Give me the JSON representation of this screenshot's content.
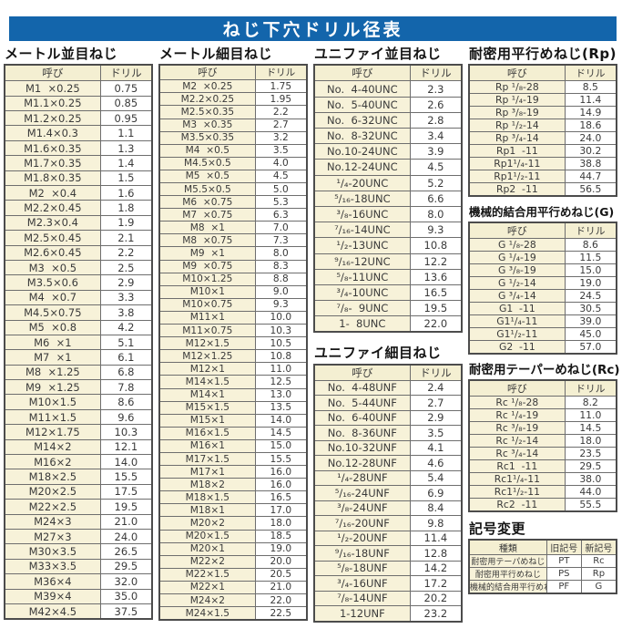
{
  "page_title": "ねじ下穴ドリル径表",
  "colors": {
    "banner_bg": "#1365ab",
    "banner_text": "#ffffff",
    "cell_cream": "#f7f2d9",
    "table_border": "#4c4c4c"
  },
  "tables": {
    "metric_coarse": {
      "title": "メートル並目ねじ",
      "col_headers": [
        "呼び",
        "ドリル"
      ],
      "rows": [
        [
          "M1  ×0.25",
          "0.75"
        ],
        [
          "M1.1×0.25",
          "0.85"
        ],
        [
          "M1.2×0.25",
          "0.95"
        ],
        [
          "M1.4×0.3",
          "1.1"
        ],
        [
          "M1.6×0.35",
          "1.3"
        ],
        [
          "M1.7×0.35",
          "1.4"
        ],
        [
          "M1.8×0.35",
          "1.5"
        ],
        [
          "M2  ×0.4",
          "1.6"
        ],
        [
          "M2.2×0.45",
          "1.8"
        ],
        [
          "M2.3×0.4",
          "1.9"
        ],
        [
          "M2.5×0.45",
          "2.1"
        ],
        [
          "M2.6×0.45",
          "2.2"
        ],
        [
          "M3  ×0.5",
          "2.5"
        ],
        [
          "M3.5×0.6",
          "2.9"
        ],
        [
          "M4  ×0.7",
          "3.3"
        ],
        [
          "M4.5×0.75",
          "3.8"
        ],
        [
          "M5  ×0.8",
          "4.2"
        ],
        [
          "M6  ×1",
          "5.1"
        ],
        [
          "M7  ×1",
          "6.1"
        ],
        [
          "M8  ×1.25",
          "6.8"
        ],
        [
          "M9  ×1.25",
          "7.8"
        ],
        [
          "M10×1.5",
          "8.6"
        ],
        [
          "M11×1.5",
          "9.6"
        ],
        [
          "M12×1.75",
          "10.3"
        ],
        [
          "M14×2",
          "12.1"
        ],
        [
          "M16×2",
          "14.0"
        ],
        [
          "M18×2.5",
          "15.5"
        ],
        [
          "M20×2.5",
          "17.5"
        ],
        [
          "M22×2.5",
          "19.5"
        ],
        [
          "M24×3",
          "21.0"
        ],
        [
          "M27×3",
          "24.0"
        ],
        [
          "M30×3.5",
          "26.5"
        ],
        [
          "M33×3.5",
          "29.5"
        ],
        [
          "M36×4",
          "32.0"
        ],
        [
          "M39×4",
          "35.0"
        ],
        [
          "M42×4.5",
          "37.5"
        ]
      ]
    },
    "metric_fine": {
      "title": "メートル細目ねじ",
      "col_headers": [
        "呼び",
        "ドリル"
      ],
      "rows": [
        [
          "M2  ×0.25",
          "1.75"
        ],
        [
          "M2.2×0.25",
          "1.95"
        ],
        [
          "M2.5×0.35",
          "2.2"
        ],
        [
          "M3  ×0.35",
          "2.7"
        ],
        [
          "M3.5×0.35",
          "3.2"
        ],
        [
          "M4  ×0.5",
          "3.5"
        ],
        [
          "M4.5×0.5",
          "4.0"
        ],
        [
          "M5  ×0.5",
          "4.5"
        ],
        [
          "M5.5×0.5",
          "5.0"
        ],
        [
          "M6  ×0.75",
          "5.3"
        ],
        [
          "M7  ×0.75",
          "6.3"
        ],
        [
          "M8  ×1",
          "7.0"
        ],
        [
          "M8  ×0.75",
          "7.3"
        ],
        [
          "M9  ×1",
          "8.0"
        ],
        [
          "M9  ×0.75",
          "8.3"
        ],
        [
          "M10×1.25",
          "8.8"
        ],
        [
          "M10×1",
          "9.0"
        ],
        [
          "M10×0.75",
          "9.3"
        ],
        [
          "M11×1",
          "10.0"
        ],
        [
          "M11×0.75",
          "10.3"
        ],
        [
          "M12×1.5",
          "10.5"
        ],
        [
          "M12×1.25",
          "10.8"
        ],
        [
          "M12×1",
          "11.0"
        ],
        [
          "M14×1.5",
          "12.5"
        ],
        [
          "M14×1",
          "13.0"
        ],
        [
          "M15×1.5",
          "13.5"
        ],
        [
          "M15×1",
          "14.0"
        ],
        [
          "M16×1.5",
          "14.5"
        ],
        [
          "M16×1",
          "15.0"
        ],
        [
          "M17×1.5",
          "15.5"
        ],
        [
          "M17×1",
          "16.0"
        ],
        [
          "M18×2",
          "16.0"
        ],
        [
          "M18×1.5",
          "16.5"
        ],
        [
          "M18×1",
          "17.0"
        ],
        [
          "M20×2",
          "18.0"
        ],
        [
          "M20×1.5",
          "18.5"
        ],
        [
          "M20×1",
          "19.0"
        ],
        [
          "M22×2",
          "20.0"
        ],
        [
          "M22×1.5",
          "20.5"
        ],
        [
          "M22×1",
          "21.0"
        ],
        [
          "M24×2",
          "22.0"
        ],
        [
          "M24×1.5",
          "22.5"
        ]
      ]
    },
    "unified_coarse": {
      "title": "ユニファイ並目ねじ",
      "col_headers": [
        "呼び",
        "ドリル"
      ],
      "rows": [
        [
          "No.  4-40UNC",
          "2.3"
        ],
        [
          "No.  5-40UNC",
          "2.6"
        ],
        [
          "No.  6-32UNC",
          "2.8"
        ],
        [
          "No.  8-32UNC",
          "3.4"
        ],
        [
          "No.10-24UNC",
          "3.9"
        ],
        [
          "No.12-24UNC",
          "4.5"
        ],
        [
          "¹/₄-20UNC",
          "5.2"
        ],
        [
          "⁵/₁₆-18UNC",
          "6.6"
        ],
        [
          "³/₈-16UNC",
          "8.0"
        ],
        [
          "⁷/₁₆-14UNC",
          "9.3"
        ],
        [
          "¹/₂-13UNC",
          "10.8"
        ],
        [
          "⁹/₁₆-12UNC",
          "12.2"
        ],
        [
          "⁵/₈-11UNC",
          "13.6"
        ],
        [
          "³/₄-10UNC",
          "16.5"
        ],
        [
          "⁷/₈-  9UNC",
          "19.5"
        ],
        [
          "1-  8UNC",
          "22.0"
        ]
      ]
    },
    "unified_fine": {
      "title": "ユニファイ細目ねじ",
      "col_headers": [
        "呼び",
        "ドリル"
      ],
      "rows": [
        [
          "No.  4-48UNF",
          "2.4"
        ],
        [
          "No.  5-44UNF",
          "2.7"
        ],
        [
          "No.  6-40UNF",
          "2.9"
        ],
        [
          "No.  8-36UNF",
          "3.5"
        ],
        [
          "No.10-32UNF",
          "4.1"
        ],
        [
          "No.12-28UNF",
          "4.6"
        ],
        [
          "¹/₄-28UNF",
          "5.4"
        ],
        [
          "⁵/₁₆-24UNF",
          "6.9"
        ],
        [
          "³/₈-24UNF",
          "8.4"
        ],
        [
          "⁷/₁₆-20UNF",
          "9.8"
        ],
        [
          "¹/₂-20UNF",
          "11.4"
        ],
        [
          "⁹/₁₆-18UNF",
          "12.8"
        ],
        [
          "⁵/₈-18UNF",
          "14.2"
        ],
        [
          "³/₄-16UNF",
          "17.2"
        ],
        [
          "⁷/₈-14UNF",
          "20.2"
        ],
        [
          "1-12UNF",
          "23.2"
        ]
      ]
    },
    "rp": {
      "title": "耐密用平行めねじ(Rp)",
      "col_headers": [
        "呼び",
        "ドリル"
      ],
      "rows": [
        [
          "Rp ¹/₈-28",
          "8.5"
        ],
        [
          "Rp ¹/₄-19",
          "11.4"
        ],
        [
          "Rp ³/₈-19",
          "14.9"
        ],
        [
          "Rp ¹/₂-14",
          "18.6"
        ],
        [
          "Rp ³/₄-14",
          "24.0"
        ],
        [
          "Rp1  -11",
          "30.2"
        ],
        [
          "Rp1¹/₄-11",
          "38.8"
        ],
        [
          "Rp1¹/₂-11",
          "44.7"
        ],
        [
          "Rp2  -11",
          "56.5"
        ]
      ]
    },
    "g": {
      "title": "機械的結合用平行めねじ(G)",
      "col_headers": [
        "呼び",
        "ドリル"
      ],
      "rows": [
        [
          "G ¹/₈-28",
          "8.6"
        ],
        [
          "G ¹/₄-19",
          "11.5"
        ],
        [
          "G ³/₈-19",
          "15.0"
        ],
        [
          "G ¹/₂-14",
          "19.0"
        ],
        [
          "G ³/₄-14",
          "24.5"
        ],
        [
          "G1  -11",
          "30.5"
        ],
        [
          "G1¹/₄-11",
          "39.0"
        ],
        [
          "G1¹/₂-11",
          "45.0"
        ],
        [
          "G2  -11",
          "57.0"
        ]
      ]
    },
    "rc": {
      "title": "耐密用テーパーめねじ(Rc)",
      "col_headers": [
        "呼び",
        "ドリル"
      ],
      "rows": [
        [
          "Rc ¹/₈-28",
          "8.2"
        ],
        [
          "Rc ¹/₄-19",
          "11.0"
        ],
        [
          "Rc ³/₈-19",
          "14.5"
        ],
        [
          "Rc ¹/₂-14",
          "18.0"
        ],
        [
          "Rc ³/₄-14",
          "23.5"
        ],
        [
          "Rc1  -11",
          "29.5"
        ],
        [
          "Rc1¹/₄-11",
          "38.0"
        ],
        [
          "Rc1¹/₂-11",
          "44.0"
        ],
        [
          "Rc2  -11",
          "55.5"
        ]
      ]
    },
    "symbol_change": {
      "title": "記号変更",
      "col_headers": [
        "種類",
        "旧記号",
        "新記号"
      ],
      "rows": [
        [
          "耐密用テーパめねじ",
          "PT",
          "Rc"
        ],
        [
          "耐密用平行めねじ",
          "PS",
          "Rp"
        ],
        [
          "機械的結合用平行めねじ",
          "PF",
          "G"
        ]
      ]
    }
  }
}
